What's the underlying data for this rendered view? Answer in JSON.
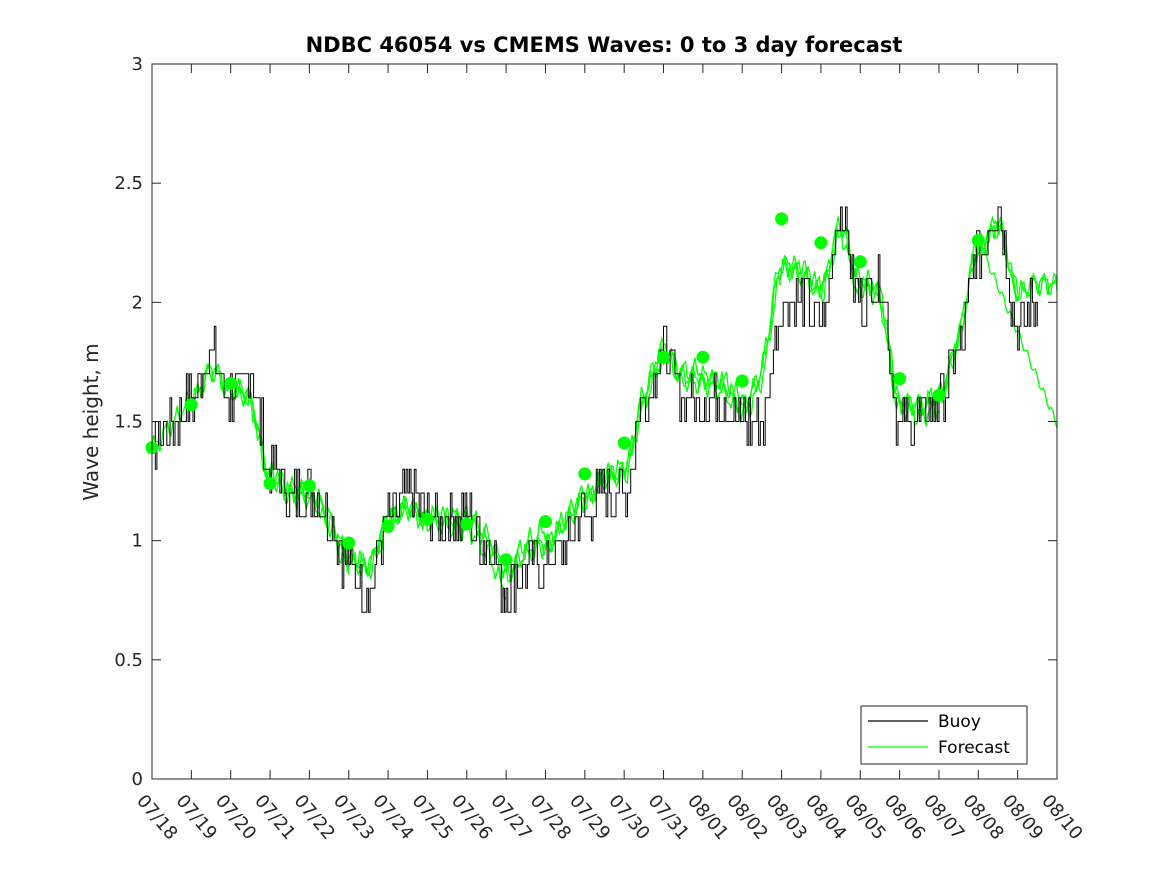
{
  "chart_data": {
    "type": "line",
    "title": "NDBC 46054 vs CMEMS Waves: 0 to 3 day forecast",
    "xlabel": "",
    "ylabel": "Wave height, m",
    "ylim": [
      0,
      3
    ],
    "yticks": [
      "0",
      "0.5",
      "1",
      "1.5",
      "2",
      "2.5",
      "3"
    ],
    "xlim": [
      "07/18",
      "08/10"
    ],
    "xticks": [
      "07/18",
      "07/19",
      "07/20",
      "07/21",
      "07/22",
      "07/23",
      "07/24",
      "07/25",
      "07/26",
      "07/27",
      "07/28",
      "07/29",
      "07/30",
      "07/31",
      "08/01",
      "08/02",
      "08/03",
      "08/04",
      "08/05",
      "08/06",
      "08/07",
      "08/08",
      "08/09",
      "08/10"
    ],
    "grid": false,
    "legend": {
      "placement": "bottom-right",
      "entries": [
        "Buoy",
        "Forecast"
      ]
    },
    "colors": {
      "buoy": "#000000",
      "forecast": "#00ff00",
      "axis": "#262626"
    },
    "series": [
      {
        "name": "Buoy",
        "x": [
          "07/18",
          "07/18 12h",
          "07/19",
          "07/19 12h",
          "07/20",
          "07/20 12h",
          "07/21",
          "07/21 12h",
          "07/22",
          "07/22 12h",
          "07/23",
          "07/23 12h",
          "07/24",
          "07/24 12h",
          "07/25",
          "07/25 12h",
          "07/26",
          "07/26 12h",
          "07/27",
          "07/27 12h",
          "07/28",
          "07/28 12h",
          "07/29",
          "07/29 12h",
          "07/30",
          "07/30 12h",
          "07/31",
          "07/31 12h",
          "08/01",
          "08/01 12h",
          "08/02",
          "08/02 12h",
          "08/03",
          "08/03 12h",
          "08/04",
          "08/04 12h",
          "08/05",
          "08/05 12h",
          "08/06",
          "08/06 12h",
          "08/07",
          "08/07 12h",
          "08/08",
          "08/08 12h",
          "08/09",
          "08/09 12h"
        ],
        "values": [
          1.4,
          1.5,
          1.6,
          1.8,
          1.6,
          1.7,
          1.3,
          1.2,
          1.2,
          1.1,
          0.9,
          0.8,
          1.1,
          1.2,
          1.1,
          1.1,
          1.1,
          1.0,
          0.8,
          0.9,
          0.9,
          1.0,
          1.1,
          1.2,
          1.2,
          1.6,
          1.8,
          1.6,
          1.6,
          1.6,
          1.5,
          1.5,
          2.0,
          2.0,
          1.9,
          2.4,
          2.0,
          2.1,
          1.5,
          1.5,
          1.6,
          1.8,
          2.2,
          2.4,
          1.9,
          2.0
        ]
      },
      {
        "name": "Forecast",
        "x": [
          "07/18",
          "07/19",
          "07/20",
          "07/21",
          "07/22",
          "07/23",
          "07/24",
          "07/25",
          "07/26",
          "07/27",
          "07/28",
          "07/29",
          "07/30",
          "07/31",
          "08/01",
          "08/02",
          "08/03",
          "08/04",
          "08/05",
          "08/06",
          "08/07",
          "08/08"
        ],
        "values": [
          1.39,
          1.57,
          1.66,
          1.24,
          1.23,
          0.99,
          1.06,
          1.09,
          1.07,
          0.92,
          1.08,
          1.28,
          1.41,
          1.77,
          1.77,
          1.67,
          2.35,
          2.25,
          2.17,
          1.68,
          1.61,
          2.26
        ]
      }
    ]
  }
}
